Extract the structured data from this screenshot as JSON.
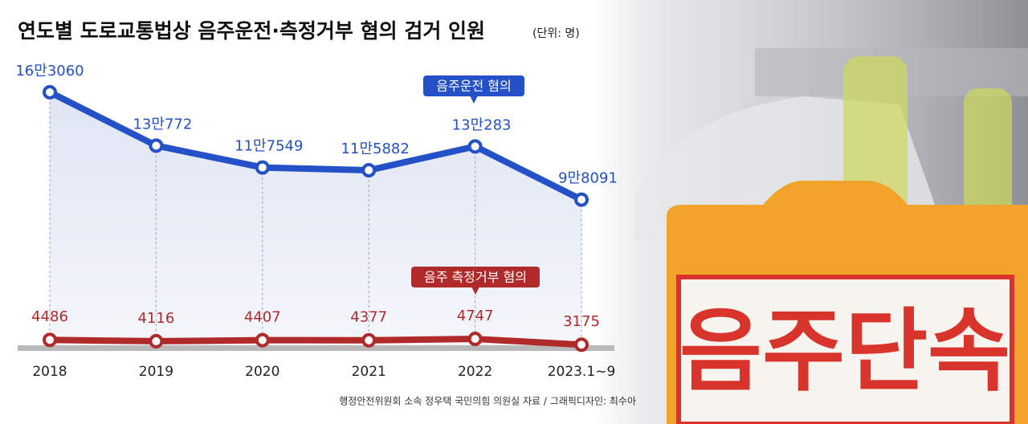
{
  "chart_data": {
    "type": "line",
    "title": "연도별 도로교통법상 음주운전·측정거부 혐의 검거 인원",
    "unit": "(단위: 명)",
    "source": "행정안전위원회 소속 정우택 국민의힘 의원실 자료 / 그래픽디자인: 최수아",
    "photo_text": "음주단속",
    "categories": [
      "2018",
      "2019",
      "2020",
      "2021",
      "2022",
      "2023.1~9"
    ],
    "series": [
      {
        "name": "음주운전 혐의",
        "color": "#2450c8",
        "values": [
          163060,
          130772,
          117549,
          115882,
          130283,
          98091
        ],
        "value_labels": [
          "16만3060",
          "13만772",
          "11만7549",
          "11만5882",
          "13만283",
          "9만8091"
        ]
      },
      {
        "name": "음주 측정거부 혐의",
        "color": "#b02a2a",
        "axis": "y2",
        "values": [
          4486,
          4116,
          4407,
          4377,
          4747,
          3175
        ]
      }
    ],
    "ylim": [
      10000,
      180000
    ],
    "y2lim": [
      3000,
      80000
    ]
  }
}
